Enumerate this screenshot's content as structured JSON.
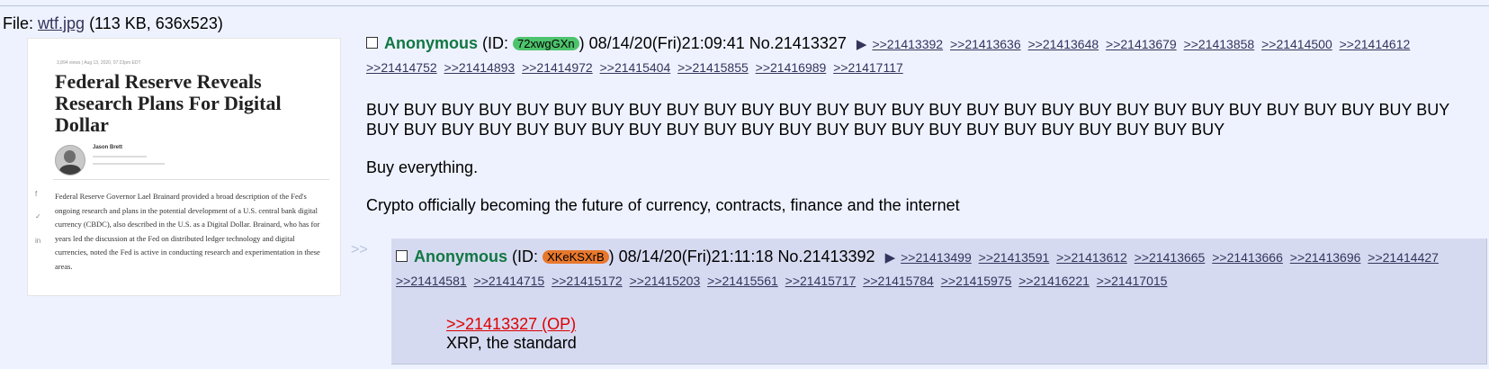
{
  "file": {
    "prefix": "File: ",
    "name": "wtf.jpg",
    "info": "(113 KB, 636x523)"
  },
  "thumbnail": {
    "meta_line": "3,894 views | Aug 13, 2020, 07:23pm EDT",
    "headline": "Federal Reserve Reveals Research Plans For Digital Dollar",
    "author": "Jason Brett",
    "body_text": "Federal Reserve Governor Lael Brainard provided a broad description of the Fed's ongoing research and plans in the potential development of a U.S. central bank digital currency (CBDC), also described in the U.S. as a Digital Dollar. Brainard, who has for years led the discussion at the Fed on distributed ledger technology and digital currencies, noted the Fed is active in conducting research and experimentation in these areas.",
    "side_icons": [
      "f",
      "✓",
      "in"
    ]
  },
  "op": {
    "name": "Anonymous",
    "id_prefix": "(ID: ",
    "id": "72xwgGXn",
    "id_color": "#4ec36d",
    "id_suffix": ")",
    "datetime": "08/14/20(Fri)21:09:41",
    "number": "No.21413327",
    "arrow": "▶",
    "backlinks": [
      ">>21413392",
      ">>21413636",
      ">>21413648",
      ">>21413679",
      ">>21413858",
      ">>21414500",
      ">>21414612",
      ">>21414752",
      ">>21414893",
      ">>21414972",
      ">>21415404",
      ">>21415855",
      ">>21416989",
      ">>21417117"
    ],
    "message": {
      "line1": "BUY BUY BUY BUY BUY BUY BUY BUY BUY BUY BUY BUY BUY BUY BUY BUY BUY BUY BUY BUY BUY BUY BUY BUY BUY BUY BUY BUY BUY BUY BUY BUY BUY BUY BUY BUY BUY BUY BUY BUY BUY BUY BUY BUY BUY BUY BUY BUY BUY BUY BUY BUY",
      "line2": "Buy everything.",
      "line3": "Crypto officially becoming the future of currency, contracts, finance and the internet"
    }
  },
  "reply": {
    "side_arrows": ">>",
    "name": "Anonymous",
    "id_prefix": "(ID: ",
    "id": "XKeKSXrB",
    "id_color": "#e8782c",
    "id_suffix": ")",
    "datetime": "08/14/20(Fri)21:11:18",
    "number": "No.21413392",
    "arrow": "▶",
    "backlinks": [
      ">>21413499",
      ">>21413591",
      ">>21413612",
      ">>21413665",
      ">>21413666",
      ">>21413696",
      ">>21414427",
      ">>21414581",
      ">>21414715",
      ">>21415172",
      ">>21415203",
      ">>21415561",
      ">>21415717",
      ">>21415784",
      ">>21415975",
      ">>21416221",
      ">>21417015"
    ],
    "quote_link": ">>21413327 (OP)",
    "message": "XRP, the standard"
  }
}
